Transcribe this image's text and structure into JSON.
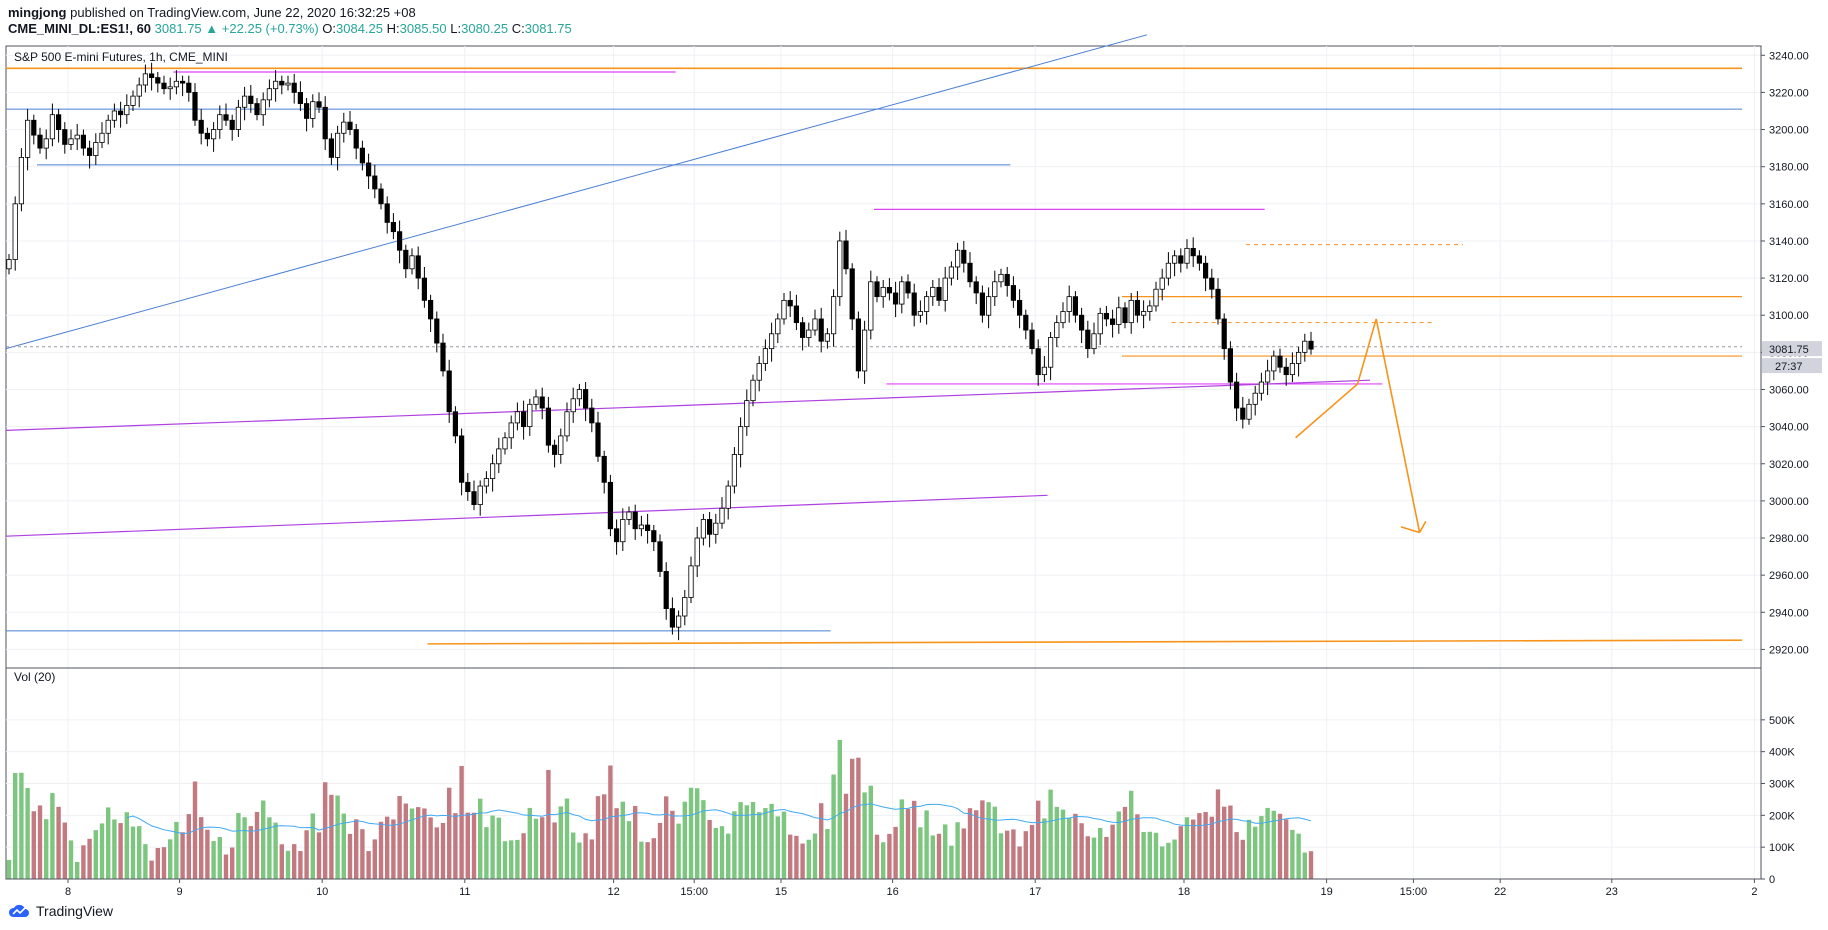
{
  "header": {
    "user": "mingjong",
    "published": "published on TradingView.com, June 22, 2020 16:32:25 +08",
    "symbol": "CME_MINI_DL:ES1!, 60",
    "last": "3081.75",
    "change": "+22.25 (+0.73%)",
    "o_label": "O:",
    "o": "3084.25",
    "h_label": "H:",
    "h": "3085.50",
    "l_label": "L:",
    "l": "3080.25",
    "c_label": "C:",
    "c": "3081.75"
  },
  "footer": {
    "brand": "TradingView"
  },
  "colors": {
    "up": "#ffffff",
    "down": "#000000",
    "wick": "#000000",
    "vol_up": "#7dc67f",
    "vol_down": "#c27a80",
    "vol_ma": "#3fa9f5",
    "orange": "#f7931a",
    "magenta": "#e040fb",
    "purple": "#b040e0",
    "blue": "#4a7fd4",
    "grid": "#eef0f4",
    "axis": "#50535e"
  },
  "chart_data": [
    {
      "type": "candlestick",
      "title": "S&P 500 E-mini Futures, 1h, CME_MINI",
      "ylim": [
        2910,
        3245
      ],
      "yticks": [
        3240,
        3220,
        3200,
        3180,
        3160,
        3140,
        3120,
        3100,
        3080,
        3060,
        3040,
        3020,
        3000,
        2980,
        2960,
        2940,
        2920
      ],
      "ytick_labels": [
        "3240.00",
        "3220.00",
        "3200.00",
        "3180.00",
        "3160.00",
        "3140.00",
        "3120.00",
        "3100.00",
        "3080.00",
        "3060.00",
        "3040.00",
        "3020.00",
        "3000.00",
        "2980.00",
        "2960.00",
        "2940.00",
        "2920.00"
      ],
      "xticks": [
        {
          "label": "8",
          "bar": 10
        },
        {
          "label": "9",
          "bar": 28
        },
        {
          "label": "10",
          "bar": 51
        },
        {
          "label": "11",
          "bar": 74
        },
        {
          "label": "12",
          "bar": 98
        },
        {
          "label": "15:00",
          "bar": 111
        },
        {
          "label": "15",
          "bar": 125
        },
        {
          "label": "16",
          "bar": 143
        },
        {
          "label": "17",
          "bar": 166
        },
        {
          "label": "18",
          "bar": 190
        },
        {
          "label": "19",
          "bar": 213
        },
        {
          "label": "15:00",
          "bar": 227
        },
        {
          "label": "22",
          "bar": 241
        },
        {
          "label": "23",
          "bar": 259
        },
        {
          "label": "2",
          "bar": 282
        }
      ],
      "last_price_label": "3081.75",
      "countdown_label": "27:37",
      "last_price": 3081.75,
      "closes": [
        3130,
        3160,
        3185,
        3205,
        3197,
        3190,
        3195,
        3208,
        3200,
        3192,
        3195,
        3197,
        3190,
        3186,
        3193,
        3198,
        3205,
        3210,
        3208,
        3213,
        3218,
        3224,
        3230,
        3228,
        3225,
        3222,
        3223,
        3226,
        3225,
        3220,
        3205,
        3198,
        3195,
        3200,
        3208,
        3205,
        3200,
        3212,
        3218,
        3214,
        3208,
        3216,
        3222,
        3226,
        3224,
        3225,
        3220,
        3214,
        3206,
        3215,
        3212,
        3195,
        3185,
        3198,
        3204,
        3200,
        3190,
        3182,
        3175,
        3168,
        3160,
        3150,
        3145,
        3135,
        3125,
        3132,
        3120,
        3108,
        3098,
        3085,
        3070,
        3048,
        3035,
        3010,
        3005,
        2998,
        3008,
        3012,
        3020,
        3028,
        3034,
        3042,
        3048,
        3040,
        3052,
        3056,
        3050,
        3030,
        3025,
        3035,
        3048,
        3055,
        3060,
        3050,
        3042,
        3024,
        3010,
        2985,
        2978,
        2990,
        2994,
        2985,
        2987,
        2984,
        2978,
        2962,
        2942,
        2932,
        2938,
        2948,
        2965,
        2980,
        2990,
        2982,
        2988,
        2996,
        3008,
        3025,
        3040,
        3054,
        3065,
        3074,
        3082,
        3090,
        3098,
        3108,
        3105,
        3096,
        3088,
        3092,
        3098,
        3086,
        3090,
        3110,
        3140,
        3125,
        3098,
        3070,
        3092,
        3118,
        3110,
        3115,
        3112,
        3106,
        3118,
        3112,
        3100,
        3102,
        3110,
        3115,
        3108,
        3120,
        3126,
        3135,
        3128,
        3118,
        3112,
        3100,
        3110,
        3118,
        3122,
        3116,
        3108,
        3100,
        3092,
        3082,
        3068,
        3072,
        3088,
        3096,
        3102,
        3110,
        3100,
        3092,
        3082,
        3090,
        3101,
        3098,
        3095,
        3104,
        3096,
        3108,
        3100,
        3102,
        3105,
        3114,
        3120,
        3128,
        3132,
        3128,
        3136,
        3132,
        3128,
        3120,
        3114,
        3098,
        3082,
        3064,
        3050,
        3044,
        3052,
        3058,
        3064,
        3070,
        3078,
        3072,
        3068,
        3074,
        3080,
        3086,
        3081.75
      ],
      "vol_label": "Vol (20)",
      "vol_ylim": [
        0,
        600000
      ],
      "vol_yticks": [
        0,
        100000,
        200000,
        300000,
        400000,
        500000
      ],
      "vol_ytick_labels": [
        "0",
        "100K",
        "200K",
        "300K",
        "400K",
        "500K"
      ]
    }
  ]
}
